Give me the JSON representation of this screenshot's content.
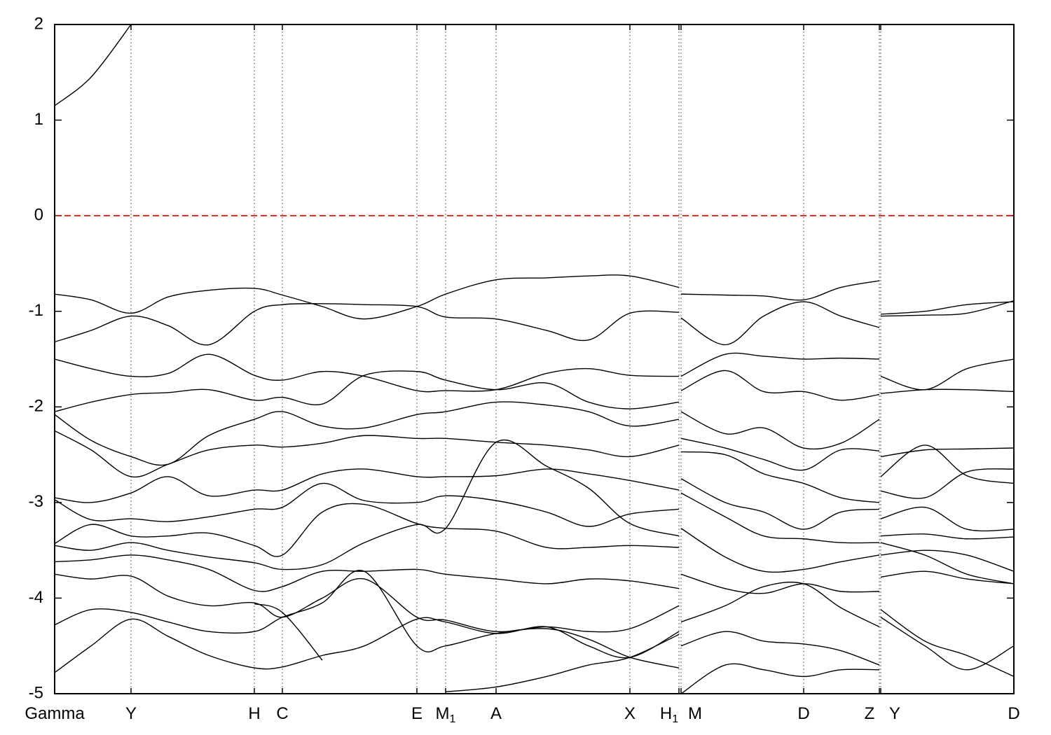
{
  "chart_data": {
    "type": "line",
    "x": [
      0,
      0.52,
      1.09,
      1.62,
      2.2,
      2.85,
      3.25,
      3.82,
      4.42,
      5.17,
      5.58,
      6.3,
      7.02,
      7.62,
      8.21,
      8.91,
      8.925,
      8.94,
      9.57,
      10.12,
      10.69,
      11.22,
      11.77,
      11.78,
      11.79,
      12.42,
      13.02,
      13.69
    ],
    "xlim": [
      0,
      13.69
    ],
    "ylim": [
      -5,
      2
    ],
    "yticks": [
      2,
      1,
      0,
      -1,
      -2,
      -3,
      -4,
      -5
    ],
    "kpoint_positions": [
      0,
      1.09,
      2.85,
      3.25,
      5.17,
      5.58,
      6.3,
      8.21,
      8.91,
      8.94,
      10.69,
      11.77,
      11.79,
      13.69
    ],
    "kpoint_labels": [
      "Gamma",
      "Y",
      "H",
      "C",
      "E",
      "M",
      "A",
      "X",
      "H",
      "M",
      "D",
      "Z",
      "Y",
      "D"
    ],
    "kpoint_subscripts": [
      null,
      null,
      null,
      null,
      null,
      "1",
      null,
      null,
      "1",
      null,
      null,
      null,
      null,
      null
    ],
    "fermi_level": 0,
    "fermi_color": "#e00000",
    "kpoint_line_color": "#666666",
    "line_color": "#000000",
    "series": [
      {
        "values": [
          1.15,
          1.45,
          2.0,
          null,
          null,
          null,
          null,
          null,
          null,
          null,
          null,
          null,
          null,
          null,
          null,
          null,
          null,
          null,
          null,
          null,
          null,
          null,
          null,
          null,
          null,
          null,
          null,
          null
        ]
      },
      {
        "values": [
          -0.82,
          -0.88,
          -1.02,
          -0.85,
          -0.78,
          -0.76,
          -0.83,
          -0.95,
          -1.08,
          -0.95,
          -0.82,
          -0.67,
          -0.65,
          -0.63,
          -0.63,
          -0.75,
          null,
          -0.82,
          -0.83,
          -0.84,
          -0.88,
          -0.75,
          -0.68,
          null,
          -1.03,
          -1.0,
          -0.93,
          -0.9
        ]
      },
      {
        "values": [
          -1.32,
          -1.2,
          -1.05,
          -1.15,
          -1.35,
          -1.0,
          -0.93,
          -0.92,
          -0.93,
          -0.95,
          -1.06,
          -1.08,
          -1.2,
          -1.3,
          -1.02,
          -1.01,
          null,
          -1.07,
          -1.35,
          -1.05,
          -0.9,
          -1.05,
          -1.17,
          null,
          -1.05,
          -1.04,
          -1.02,
          -0.89
        ]
      },
      {
        "values": [
          -1.5,
          -1.6,
          -1.68,
          -1.65,
          -1.45,
          -1.67,
          -1.72,
          -1.63,
          -1.68,
          -1.83,
          -1.83,
          -1.82,
          -1.65,
          -1.6,
          -1.67,
          -1.68,
          null,
          -1.68,
          -1.45,
          -1.47,
          -1.5,
          -1.49,
          -1.5,
          null,
          -1.68,
          -1.82,
          -1.6,
          -1.5
        ]
      },
      {
        "values": [
          -2.05,
          -1.95,
          -1.87,
          -1.85,
          -1.82,
          -1.93,
          -1.9,
          -1.97,
          -1.67,
          -1.63,
          -1.72,
          -1.82,
          -1.75,
          -1.95,
          -2.02,
          -1.95,
          null,
          -1.83,
          -1.62,
          -1.84,
          -1.84,
          -1.93,
          -1.87,
          null,
          -1.86,
          -1.82,
          -1.82,
          -1.84
        ]
      },
      {
        "values": [
          -2.08,
          -2.35,
          -2.52,
          -2.6,
          -2.3,
          -2.13,
          -2.05,
          -2.2,
          -2.22,
          -2.08,
          -2.05,
          -1.95,
          -1.98,
          -2.05,
          -2.2,
          -2.13,
          null,
          -2.05,
          -2.28,
          -2.22,
          -2.43,
          -2.38,
          -2.13,
          null,
          -2.52,
          -2.45,
          -2.44,
          -2.43
        ]
      },
      {
        "values": [
          -2.25,
          -2.45,
          -2.73,
          -2.6,
          -2.45,
          -2.4,
          -2.42,
          -2.38,
          -2.3,
          -2.33,
          -2.33,
          -2.37,
          -2.4,
          -2.45,
          -2.52,
          -2.4,
          null,
          -2.33,
          -2.43,
          -2.55,
          -2.66,
          -2.45,
          -2.46,
          null,
          -2.73,
          -2.4,
          -2.72,
          -2.8
        ]
      },
      {
        "values": [
          -2.95,
          -3.0,
          -2.9,
          -2.73,
          -2.93,
          -2.87,
          -2.87,
          -2.7,
          -2.65,
          -2.73,
          -2.73,
          -2.72,
          -2.65,
          -2.7,
          -2.77,
          -2.87,
          null,
          -2.47,
          -2.5,
          -2.7,
          -2.8,
          -2.95,
          -3.0,
          null,
          -2.88,
          -2.95,
          -2.68,
          -2.65
        ]
      },
      {
        "values": [
          -2.97,
          -3.18,
          -3.17,
          -3.2,
          -3.15,
          -3.07,
          -3.05,
          -2.8,
          -2.98,
          -3.0,
          -2.93,
          -2.98,
          -3.1,
          -3.25,
          -3.12,
          -3.07,
          null,
          -2.75,
          -3.0,
          -3.1,
          -3.28,
          -3.1,
          -3.07,
          null,
          -3.17,
          -3.05,
          -3.28,
          -3.28
        ]
      },
      {
        "values": [
          -3.43,
          -3.23,
          -3.35,
          -3.35,
          -3.32,
          -3.45,
          -3.55,
          -3.1,
          -3.02,
          -3.22,
          -3.27,
          -3.3,
          -3.47,
          -3.47,
          -3.45,
          -3.47,
          null,
          -2.9,
          -3.15,
          -3.35,
          -3.38,
          -3.42,
          -3.42,
          null,
          -3.35,
          -3.33,
          -3.38,
          -3.36
        ]
      },
      {
        "values": [
          -3.45,
          -3.5,
          -3.42,
          -3.5,
          -3.57,
          -3.63,
          -3.7,
          -3.65,
          -3.42,
          -3.23,
          -3.27,
          -2.37,
          -2.62,
          -2.85,
          -3.22,
          -3.35,
          null,
          -3.27,
          -3.57,
          -3.72,
          -3.7,
          -3.62,
          -3.55,
          null,
          -3.55,
          -3.5,
          -3.55,
          -3.72
        ]
      },
      {
        "values": [
          -3.62,
          -3.6,
          -3.55,
          -3.6,
          -3.7,
          -3.92,
          -3.88,
          -3.72,
          -3.72,
          -3.7,
          -3.75,
          -3.8,
          -3.85,
          -3.8,
          -3.82,
          -3.9,
          null,
          -3.75,
          -3.9,
          -3.95,
          -3.85,
          -3.93,
          -3.93,
          null,
          -3.42,
          -3.55,
          -3.75,
          -3.85
        ]
      },
      {
        "values": [
          -3.75,
          -3.8,
          -3.77,
          -3.98,
          -4.08,
          -4.05,
          -4.2,
          -4.0,
          -3.8,
          -4.2,
          -4.23,
          -4.35,
          -4.3,
          -4.35,
          -4.32,
          -4.08,
          null,
          -4.25,
          -4.08,
          -3.88,
          -3.85,
          -4.1,
          -4.3,
          null,
          -3.78,
          -3.72,
          -3.8,
          -3.85
        ]
      },
      {
        "values": [
          -4.28,
          -4.12,
          -4.15,
          -4.25,
          -4.35,
          -4.35,
          -4.2,
          -4.05,
          -3.72,
          -4.5,
          -4.5,
          -4.37,
          -4.32,
          -4.43,
          -4.62,
          -4.73,
          null,
          -4.5,
          -4.35,
          -4.45,
          -4.48,
          -4.55,
          -4.7,
          null,
          -4.12,
          -4.45,
          -4.6,
          -4.82
        ]
      },
      {
        "values": [
          -4.78,
          -4.5,
          -4.22,
          -4.4,
          -4.6,
          -4.73,
          -4.72,
          -4.6,
          -4.5,
          -4.22,
          -4.25,
          -4.37,
          -4.3,
          -4.5,
          -4.62,
          -4.35,
          null,
          -5.0,
          -4.7,
          -4.75,
          -4.82,
          -4.75,
          -4.75,
          null,
          -4.2,
          -4.5,
          -4.75,
          -4.5
        ]
      },
      {
        "values": [
          null,
          null,
          null,
          null,
          null,
          -4.06,
          -4.15,
          -4.65,
          null,
          null,
          null,
          null,
          null,
          null,
          null,
          null,
          null,
          null,
          null,
          null,
          null,
          null,
          null,
          null,
          null,
          null,
          null,
          null
        ]
      },
      {
        "values": [
          null,
          null,
          null,
          null,
          null,
          null,
          null,
          null,
          null,
          null,
          -4.98,
          -4.93,
          -4.82,
          -4.7,
          -4.62,
          -4.38,
          null,
          null,
          null,
          null,
          null,
          null,
          null,
          null,
          null,
          null,
          null,
          null
        ]
      }
    ]
  }
}
